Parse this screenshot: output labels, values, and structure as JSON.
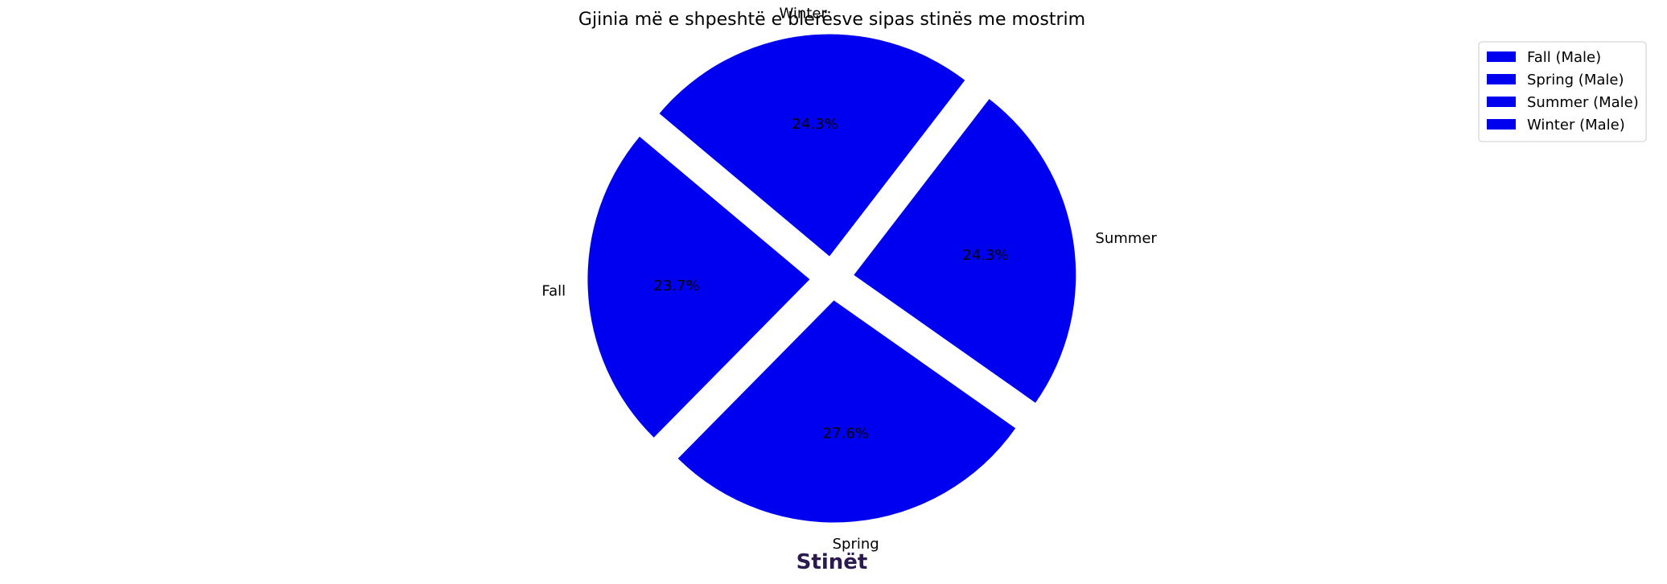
{
  "chart_data": {
    "type": "pie",
    "title": "Gjinia më e shpeshtë e blerësve sipas stinës me mostrim",
    "xlabel": "Stinët",
    "xlabel_color": "#2b1a4f",
    "slice_color": "#0000f0",
    "slices": [
      {
        "label": "Fall",
        "value": 23.7,
        "pct_label": "23.7%",
        "legend": "Fall (Male)"
      },
      {
        "label": "Spring",
        "value": 27.6,
        "pct_label": "27.6%",
        "legend": "Spring (Male)"
      },
      {
        "label": "Summer",
        "value": 24.3,
        "pct_label": "24.3%",
        "legend": "Summer (Male)"
      },
      {
        "label": "Winter",
        "value": 24.3,
        "pct_label": "24.3%",
        "legend": "Winter (Male)"
      }
    ],
    "start_angle_deg": 140,
    "exploded": true,
    "legend_position": "top-right"
  }
}
